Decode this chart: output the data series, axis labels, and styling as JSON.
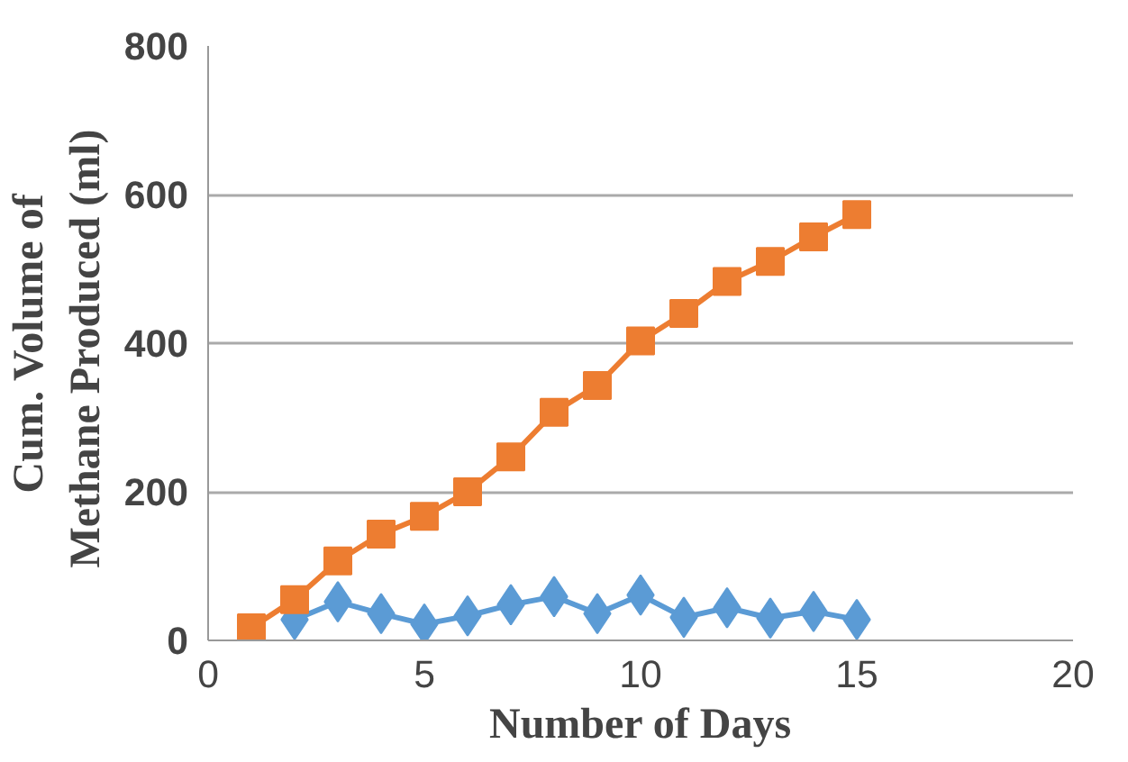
{
  "chart_data": {
    "type": "line",
    "xlabel": "Number of Days",
    "ylabel": "Cum. Volume of\nMethane  Produced (ml)",
    "x": [
      1,
      2,
      3,
      4,
      5,
      6,
      7,
      8,
      9,
      10,
      11,
      12,
      13,
      14,
      15
    ],
    "series": [
      {
        "color": "#5b9bd5",
        "marker": "diamond",
        "values": [
          null,
          28,
          52,
          36,
          22,
          33,
          48,
          59,
          36,
          61,
          31,
          44,
          30,
          39,
          28
        ]
      },
      {
        "color": "#ed7d31",
        "marker": "square",
        "values": [
          17,
          55,
          107,
          143,
          167,
          200,
          247,
          307,
          343,
          403,
          440,
          483,
          510,
          543,
          573
        ]
      }
    ],
    "xlim": [
      0,
      20
    ],
    "xticks": [
      0,
      5,
      10,
      15,
      20
    ],
    "ylim": [
      0,
      800
    ],
    "yticks": [
      0,
      200,
      400,
      600,
      800
    ],
    "grid": "y"
  }
}
